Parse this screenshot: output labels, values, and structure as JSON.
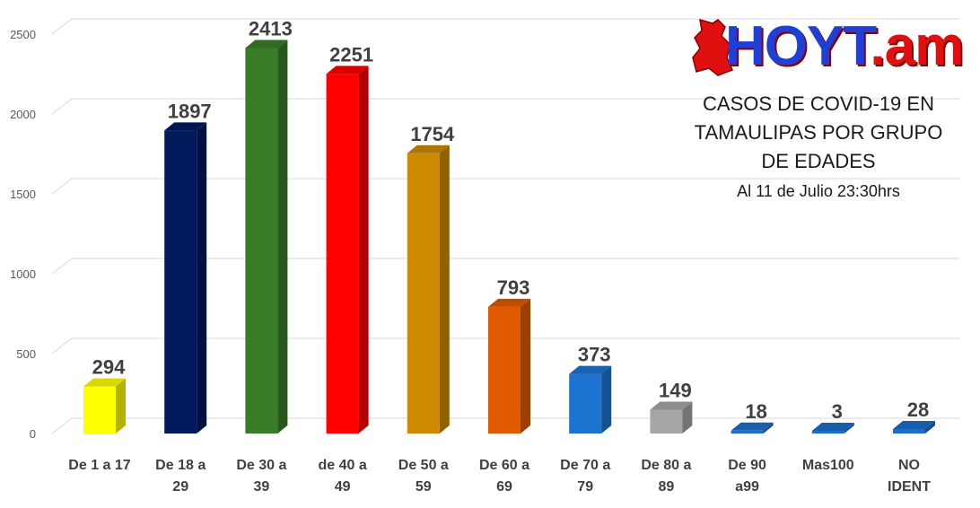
{
  "chart_data": {
    "type": "bar",
    "categories": [
      [
        "De 1 a 17"
      ],
      [
        "De 18 a",
        "29"
      ],
      [
        "De 30 a",
        "39"
      ],
      [
        "de 40 a",
        "49"
      ],
      [
        "De 50 a",
        "59"
      ],
      [
        "De 60 a",
        "69"
      ],
      [
        "De 70 a",
        "79"
      ],
      [
        "De 80 a",
        "89"
      ],
      [
        "De 90",
        "a99"
      ],
      [
        "Mas100"
      ],
      [
        "NO",
        "IDENT"
      ]
    ],
    "values": [
      294,
      1897,
      2413,
      2251,
      1754,
      793,
      373,
      149,
      18,
      3,
      28
    ],
    "colors": [
      "#ffff00",
      "#001a5c",
      "#3a7d28",
      "#ff0000",
      "#cc8a00",
      "#e05a00",
      "#1c73d0",
      "#a6a6a6",
      "#1c6cc8",
      "#1c6cc8",
      "#1c6cc8"
    ],
    "yticks": [
      0,
      500,
      1000,
      1500,
      2000,
      2500
    ],
    "ylim": [
      0,
      2500
    ],
    "grid": true,
    "legend": "none",
    "title": [
      "CASOS DE COVID-19 EN",
      "TAMAULIPAS POR GRUPO",
      "DE EDADES"
    ],
    "subtitle": "Al 11 de Julio 23:30hrs",
    "xlabel": "",
    "ylabel": ""
  },
  "logo": {
    "text_main": "HOYT",
    "text_tail": ".am",
    "brand_blue": "#1f3fd6",
    "brand_red": "#e01010"
  }
}
